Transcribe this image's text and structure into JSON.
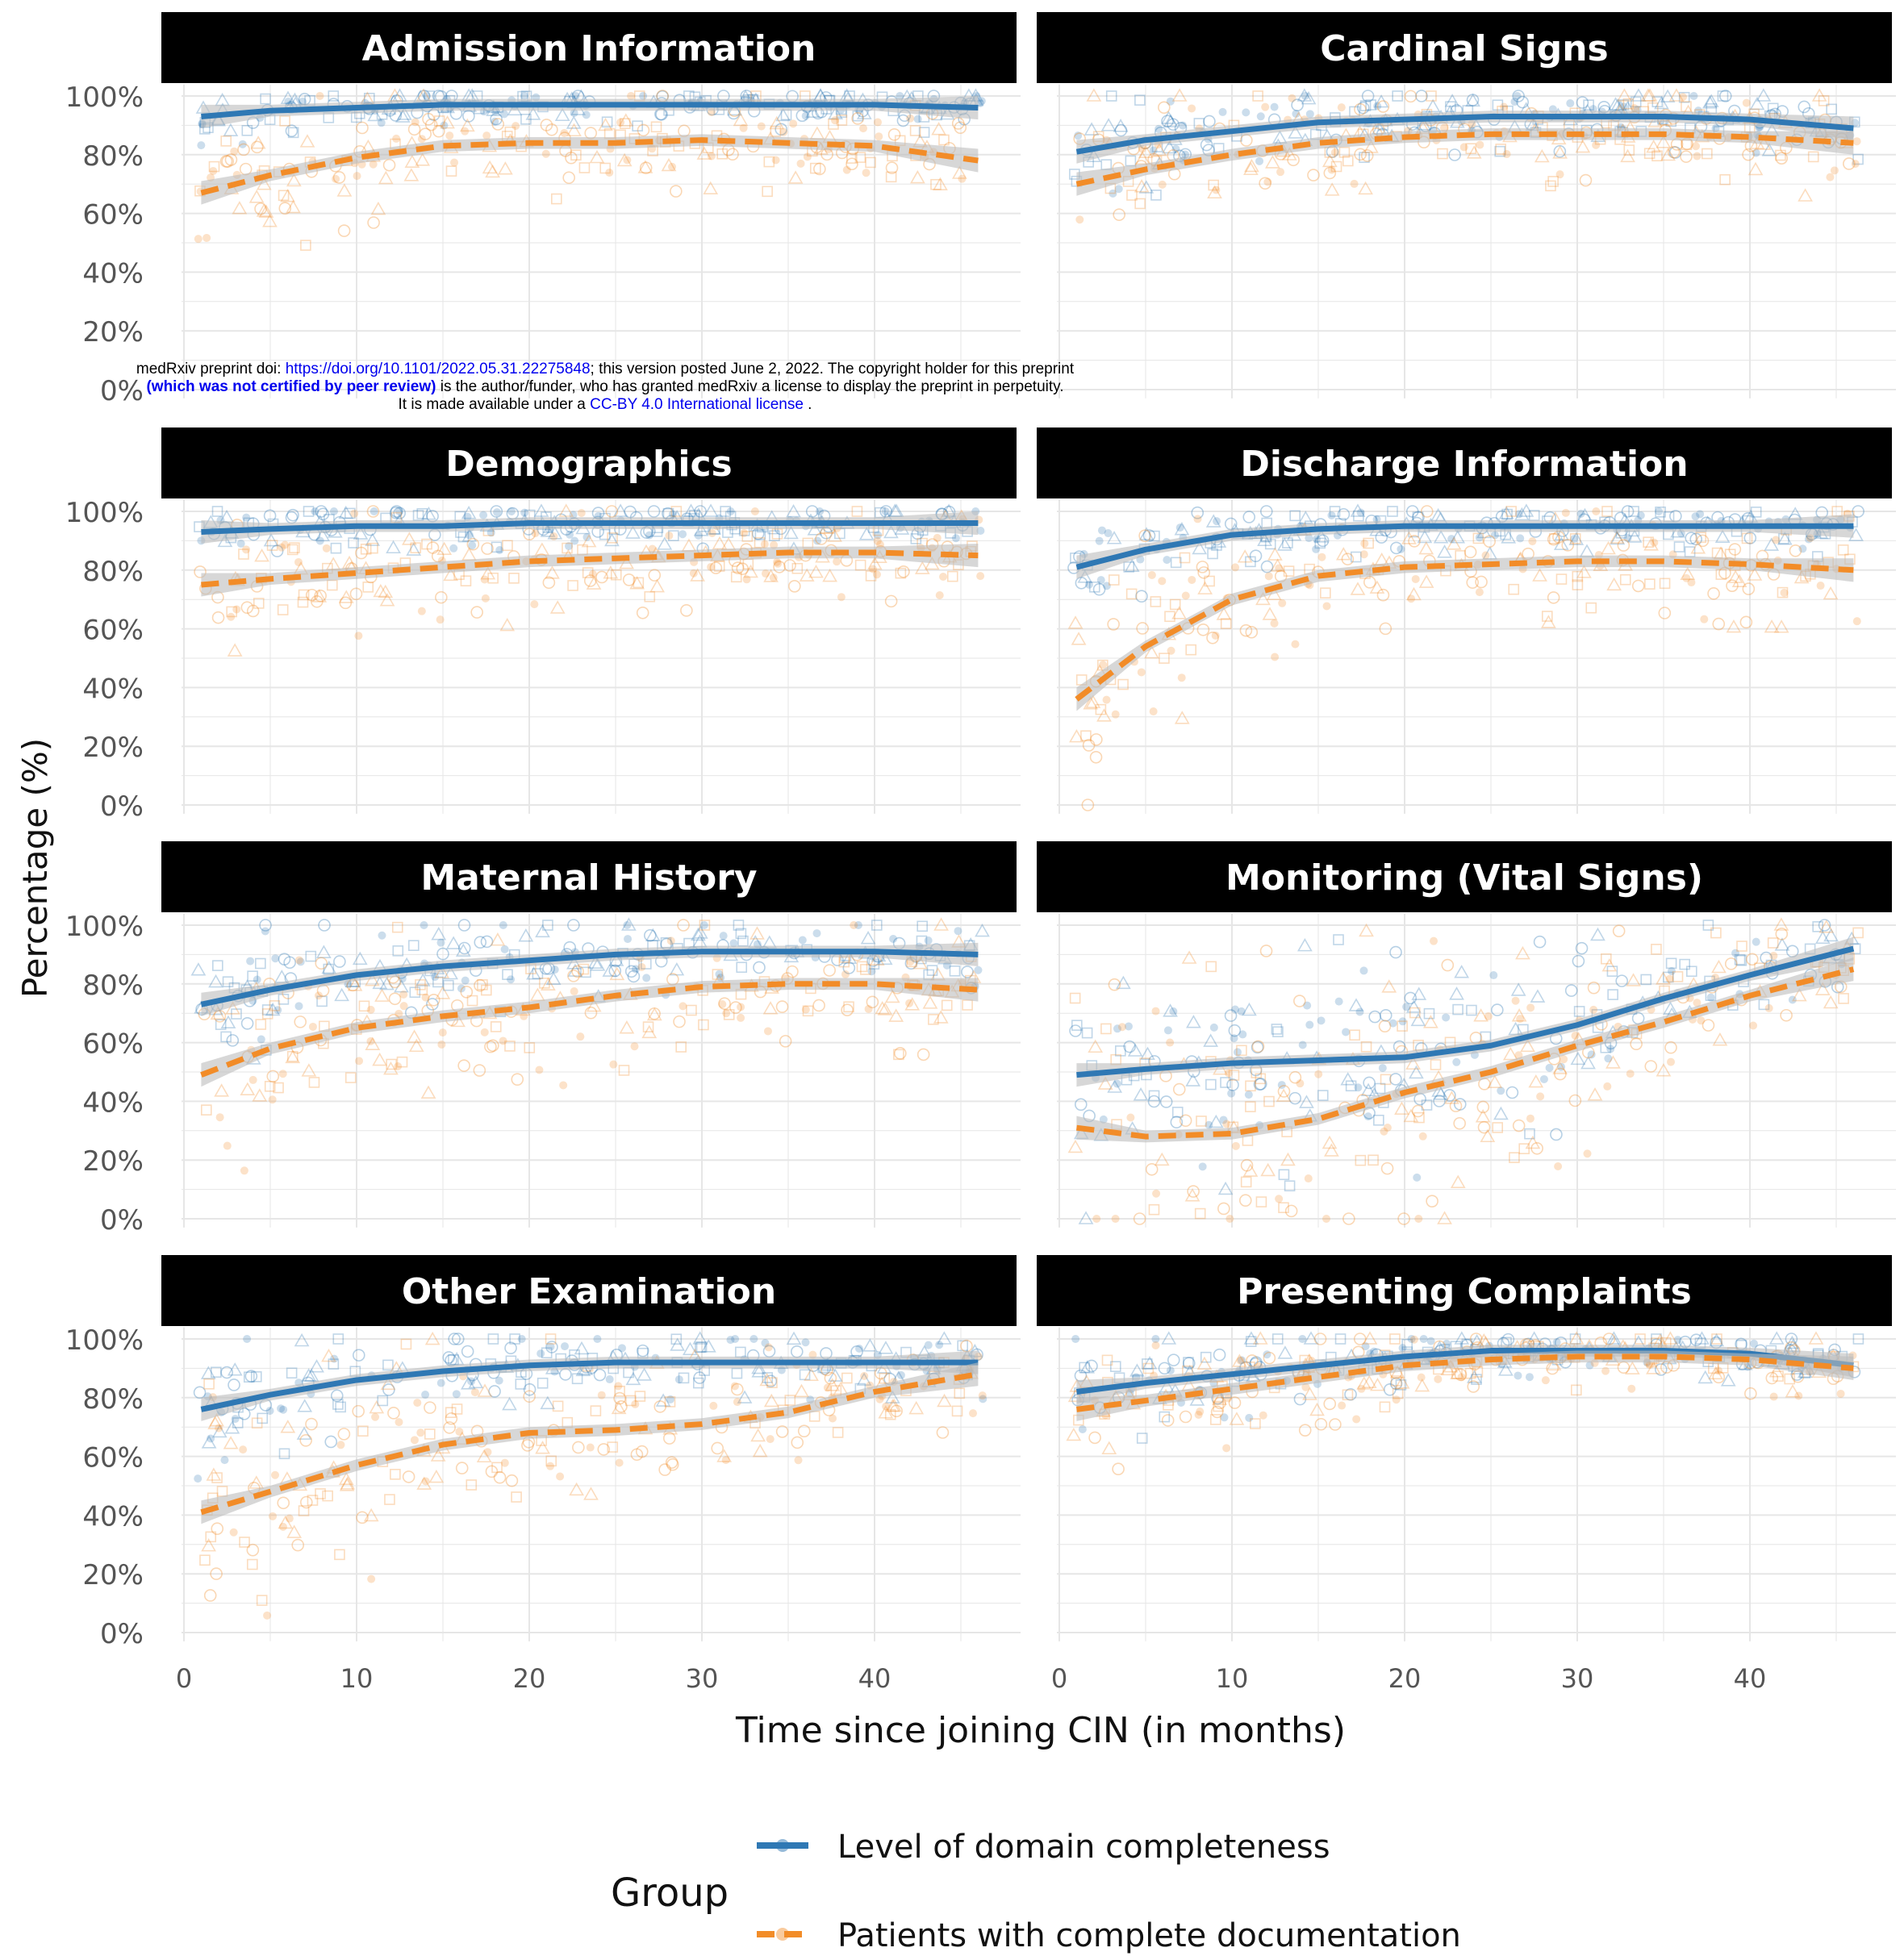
{
  "watermark": {
    "line1_prefix": "medRxiv preprint doi: ",
    "doi_link": "https://doi.org/10.1101/2022.05.31.22275848",
    "line1_suffix": "; this version posted June 2, 2022. The copyright holder for this preprint",
    "line2_bold": "(which was not certified by peer review)",
    "line2_rest": " is the author/funder, who has granted medRxiv a license to display the preprint in perpetuity.",
    "line3_prefix": "It is made available under a ",
    "license_link": "CC-BY 4.0 International license",
    "line3_suffix": " ."
  },
  "colors": {
    "blue": "#2f78b4",
    "orange": "#f28c28",
    "band": "#bdbdbd",
    "strip": "#000000",
    "grid": "#e6e6e6"
  },
  "chart_data": {
    "type": "scatter",
    "xlabel": "Time since joining CIN (in months)",
    "ylabel": "Percentage (%)",
    "xlim": [
      0,
      47
    ],
    "ylim": [
      0,
      100
    ],
    "x_ticks": [
      "0",
      "10",
      "20",
      "30",
      "40"
    ],
    "y_ticks": [
      "0%",
      "20%",
      "40%",
      "60%",
      "80%",
      "100%"
    ],
    "grid": true,
    "legend": {
      "title": "Group",
      "position": "bottom",
      "items": [
        {
          "label": "Level of domain completeness",
          "color": "#2f78b4",
          "dash": "solid"
        },
        {
          "label": "Patients with complete documentation",
          "color": "#f28c28",
          "dash": "dashed"
        }
      ]
    },
    "panels": [
      {
        "title": "Admission Information",
        "series": [
          {
            "x": [
              1,
              5,
              10,
              15,
              20,
              25,
              30,
              35,
              40,
              46
            ],
            "y": [
              93,
              95,
              96,
              97,
              97,
              97,
              97,
              97,
              97,
              96
            ]
          },
          {
            "x": [
              1,
              5,
              10,
              15,
              20,
              25,
              30,
              35,
              40,
              46
            ],
            "y": [
              67,
              73,
              79,
              83,
              84,
              84,
              85,
              84,
              83,
              78
            ]
          }
        ]
      },
      {
        "title": "Cardinal Signs",
        "series": [
          {
            "x": [
              1,
              5,
              10,
              15,
              20,
              25,
              30,
              35,
              40,
              46
            ],
            "y": [
              81,
              85,
              88,
              91,
              92,
              93,
              93,
              93,
              92,
              89
            ]
          },
          {
            "x": [
              1,
              5,
              10,
              15,
              20,
              25,
              30,
              35,
              40,
              46
            ],
            "y": [
              70,
              75,
              80,
              84,
              86,
              87,
              87,
              87,
              86,
              84
            ]
          }
        ]
      },
      {
        "title": "Demographics",
        "series": [
          {
            "x": [
              1,
              5,
              10,
              15,
              20,
              25,
              30,
              35,
              40,
              46
            ],
            "y": [
              93,
              94,
              95,
              95,
              96,
              96,
              96,
              96,
              96,
              96
            ]
          },
          {
            "x": [
              1,
              5,
              10,
              15,
              20,
              25,
              30,
              35,
              40,
              46
            ],
            "y": [
              75,
              77,
              79,
              81,
              83,
              84,
              85,
              86,
              86,
              85
            ]
          }
        ]
      },
      {
        "title": "Discharge Information",
        "series": [
          {
            "x": [
              1,
              5,
              10,
              15,
              20,
              25,
              30,
              35,
              40,
              46
            ],
            "y": [
              81,
              87,
              92,
              94,
              95,
              95,
              95,
              95,
              95,
              95
            ]
          },
          {
            "x": [
              1,
              5,
              10,
              15,
              20,
              25,
              30,
              35,
              40,
              46
            ],
            "y": [
              36,
              54,
              70,
              78,
              81,
              82,
              83,
              83,
              82,
              80
            ]
          }
        ]
      },
      {
        "title": "Maternal History",
        "series": [
          {
            "x": [
              1,
              5,
              10,
              15,
              20,
              25,
              30,
              35,
              40,
              46
            ],
            "y": [
              73,
              78,
              83,
              86,
              88,
              90,
              91,
              91,
              91,
              90
            ]
          },
          {
            "x": [
              1,
              5,
              10,
              15,
              20,
              25,
              30,
              35,
              40,
              46
            ],
            "y": [
              49,
              58,
              65,
              69,
              72,
              76,
              79,
              80,
              80,
              78
            ]
          }
        ]
      },
      {
        "title": "Monitoring (Vital Signs)",
        "series": [
          {
            "x": [
              1,
              5,
              10,
              15,
              20,
              25,
              30,
              35,
              40,
              46
            ],
            "y": [
              49,
              51,
              53,
              54,
              55,
              59,
              66,
              75,
              83,
              92
            ]
          },
          {
            "x": [
              1,
              5,
              10,
              15,
              20,
              25,
              30,
              35,
              40,
              46
            ],
            "y": [
              31,
              28,
              29,
              34,
              43,
              50,
              59,
              67,
              76,
              85
            ]
          }
        ]
      },
      {
        "title": "Other Examination",
        "series": [
          {
            "x": [
              1,
              5,
              10,
              15,
              20,
              25,
              30,
              35,
              40,
              46
            ],
            "y": [
              76,
              81,
              86,
              89,
              91,
              92,
              92,
              92,
              92,
              92
            ]
          },
          {
            "x": [
              1,
              5,
              10,
              15,
              20,
              25,
              30,
              35,
              40,
              46
            ],
            "y": [
              41,
              48,
              57,
              64,
              68,
              69,
              71,
              75,
              82,
              88
            ]
          }
        ]
      },
      {
        "title": "Presenting Complaints",
        "series": [
          {
            "x": [
              1,
              5,
              10,
              15,
              20,
              25,
              30,
              35,
              40,
              46
            ],
            "y": [
              82,
              85,
              88,
              91,
              94,
              96,
              96,
              96,
              95,
              91
            ]
          },
          {
            "x": [
              1,
              5,
              10,
              15,
              20,
              25,
              30,
              35,
              40,
              46
            ],
            "y": [
              76,
              79,
              83,
              87,
              91,
              93,
              94,
              94,
              93,
              90
            ]
          }
        ]
      }
    ]
  }
}
